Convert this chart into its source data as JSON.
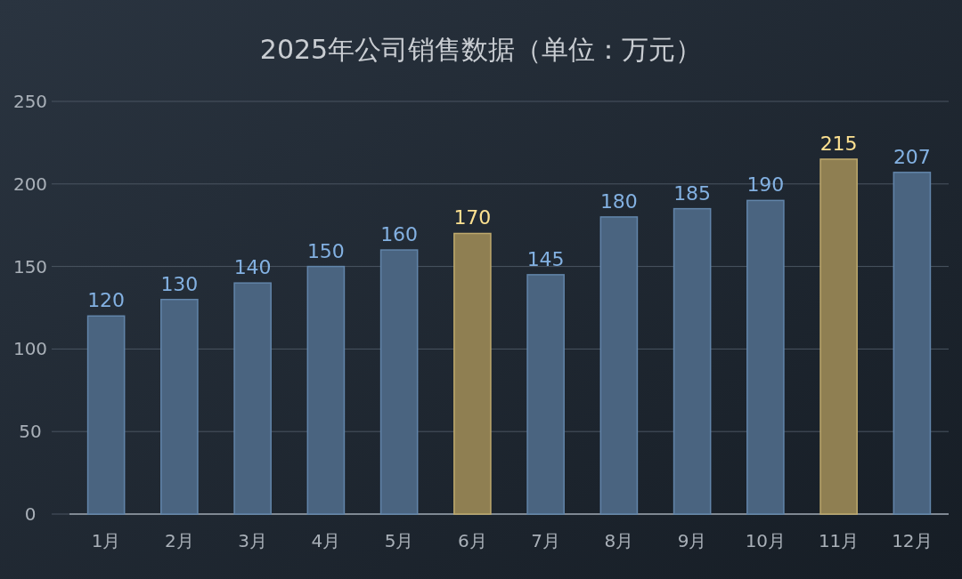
{
  "chart_data": {
    "type": "bar",
    "title": "2025年公司销售数据（单位：万元）",
    "categories": [
      "1月",
      "2月",
      "3月",
      "4月",
      "5月",
      "6月",
      "7月",
      "8月",
      "9月",
      "10月",
      "11月",
      "12月"
    ],
    "values": [
      120,
      130,
      140,
      150,
      160,
      170,
      145,
      180,
      185,
      190,
      215,
      207
    ],
    "colors": [
      "#4a6480",
      "#4a6480",
      "#4a6480",
      "#4a6480",
      "#4a6480",
      "#8f7f52",
      "#4a6480",
      "#4a6480",
      "#4a6480",
      "#4a6480",
      "#8f7f52",
      "#4a6480"
    ],
    "ylim": [
      0,
      250
    ],
    "yticks": [
      0,
      50,
      100,
      150,
      200,
      250
    ],
    "grid": "y",
    "data_labels": true
  }
}
